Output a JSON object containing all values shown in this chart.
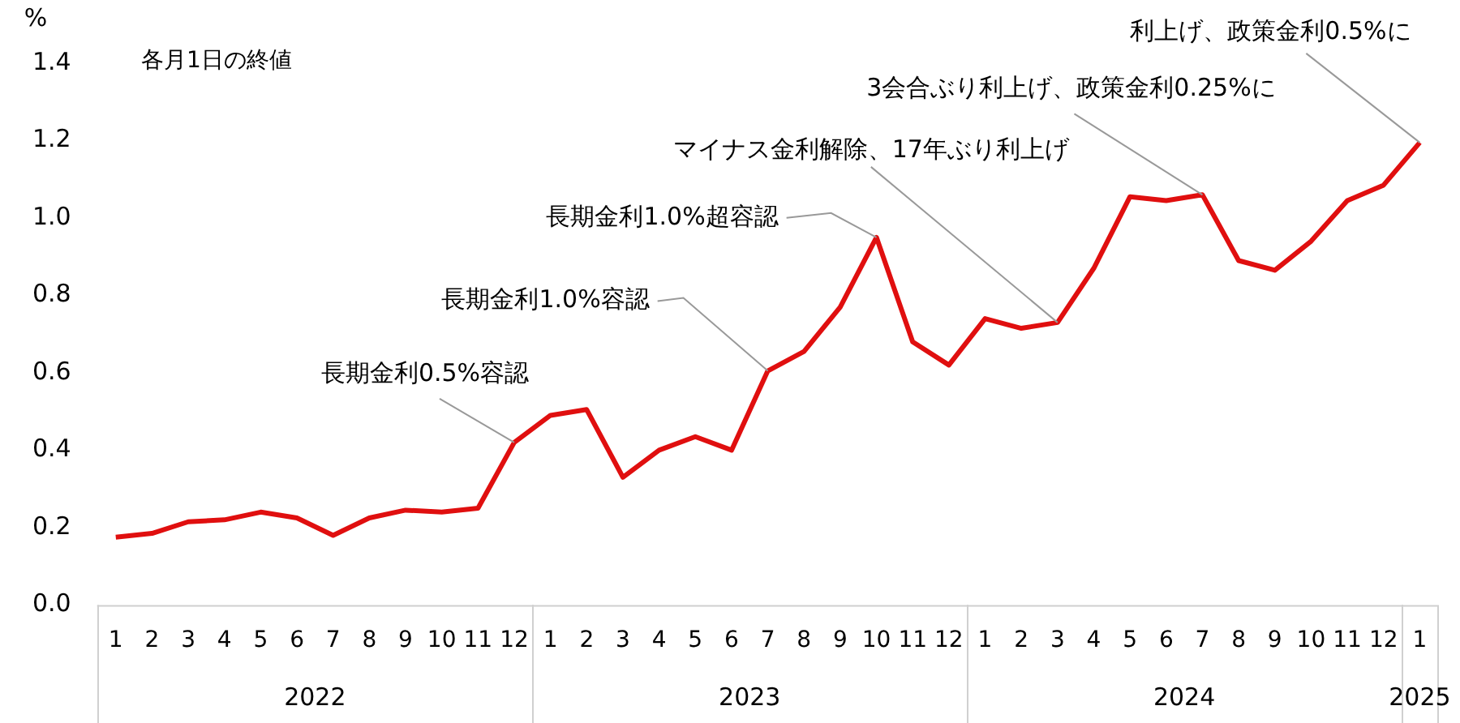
{
  "chart_data": {
    "type": "line",
    "ylabel": "%",
    "x": [
      "2022-01",
      "2022-02",
      "2022-03",
      "2022-04",
      "2022-05",
      "2022-06",
      "2022-07",
      "2022-08",
      "2022-09",
      "2022-10",
      "2022-11",
      "2022-12",
      "2023-01",
      "2023-02",
      "2023-03",
      "2023-04",
      "2023-05",
      "2023-06",
      "2023-07",
      "2023-08",
      "2023-09",
      "2023-10",
      "2023-11",
      "2023-12",
      "2024-01",
      "2024-02",
      "2024-03",
      "2024-04",
      "2024-05",
      "2024-06",
      "2024-07",
      "2024-08",
      "2024-09",
      "2024-10",
      "2024-11",
      "2024-12",
      "2025-01"
    ],
    "series": [
      {
        "color": "#e00f0f",
        "values": [
          0.175,
          0.185,
          0.215,
          0.22,
          0.24,
          0.225,
          0.18,
          0.225,
          0.245,
          0.24,
          0.25,
          0.42,
          0.49,
          0.505,
          0.33,
          0.4,
          0.435,
          0.4,
          0.605,
          0.655,
          0.77,
          0.95,
          0.68,
          0.62,
          0.74,
          0.715,
          0.73,
          0.87,
          1.055,
          1.045,
          1.06,
          0.89,
          0.865,
          0.94,
          1.045,
          1.085,
          1.195
        ]
      }
    ],
    "xlim": [
      "2021-12-16",
      "2025-01-16"
    ],
    "xticks": [
      {
        "value": "2022-01",
        "label": "1"
      },
      {
        "value": "2022-02",
        "label": "2"
      },
      {
        "value": "2022-03",
        "label": "3"
      },
      {
        "value": "2022-04",
        "label": "4"
      },
      {
        "value": "2022-05",
        "label": "5"
      },
      {
        "value": "2022-06",
        "label": "6"
      },
      {
        "value": "2022-07",
        "label": "7"
      },
      {
        "value": "2022-08",
        "label": "8"
      },
      {
        "value": "2022-09",
        "label": "9"
      },
      {
        "value": "2022-10",
        "label": "10"
      },
      {
        "value": "2022-11",
        "label": "11"
      },
      {
        "value": "2022-12",
        "label": "12"
      },
      {
        "value": "2023-01",
        "label": "1"
      },
      {
        "value": "2023-02",
        "label": "2"
      },
      {
        "value": "2023-03",
        "label": "3"
      },
      {
        "value": "2023-04",
        "label": "4"
      },
      {
        "value": "2023-05",
        "label": "5"
      },
      {
        "value": "2023-06",
        "label": "6"
      },
      {
        "value": "2023-07",
        "label": "7"
      },
      {
        "value": "2023-08",
        "label": "8"
      },
      {
        "value": "2023-09",
        "label": "9"
      },
      {
        "value": "2023-10",
        "label": "10"
      },
      {
        "value": "2023-11",
        "label": "11"
      },
      {
        "value": "2023-12",
        "label": "12"
      },
      {
        "value": "2024-01",
        "label": "1"
      },
      {
        "value": "2024-02",
        "label": "2"
      },
      {
        "value": "2024-03",
        "label": "3"
      },
      {
        "value": "2024-04",
        "label": "4"
      },
      {
        "value": "2024-05",
        "label": "5"
      },
      {
        "value": "2024-06",
        "label": "6"
      },
      {
        "value": "2024-07",
        "label": "7"
      },
      {
        "value": "2024-08",
        "label": "8"
      },
      {
        "value": "2024-09",
        "label": "9"
      },
      {
        "value": "2024-10",
        "label": "10"
      },
      {
        "value": "2024-11",
        "label": "11"
      },
      {
        "value": "2024-12",
        "label": "12"
      },
      {
        "value": "2025-01",
        "label": "1"
      }
    ],
    "ylim": [
      0,
      1.4
    ],
    "yticks": [
      {
        "value": 0,
        "label": "0.0"
      },
      0.2,
      0.4,
      0.6,
      0.8,
      {
        "value": 1,
        "label": "1.0"
      },
      1.2,
      1.4
    ],
    "grid": false,
    "legend": false,
    "marker": "none",
    "line_style": "solid",
    "annotations": [
      "各月1日の終値",
      {
        "text": "長期金利0.5%容認",
        "x": "2022-12",
        "y": 0.42
      },
      {
        "text": "長期金利1.0%容認",
        "x": "2023-07",
        "y": 0.605
      },
      {
        "text": "長期金利1.0%超容認",
        "x": "2023-10",
        "y": 0.95
      },
      {
        "text": "マイナス金利解除、17年ぶり利上げ",
        "x": "2024-03",
        "y": 0.73
      },
      {
        "text": "3会合ぶり利上げ、政策金利0.25%に",
        "x": "2024-07",
        "y": 1.06
      },
      {
        "text": "利上げ、政策金利0.5%に",
        "x": "2025-01",
        "y": 1.195
      },
      "2022",
      "2023",
      "2024",
      "2025"
    ]
  }
}
